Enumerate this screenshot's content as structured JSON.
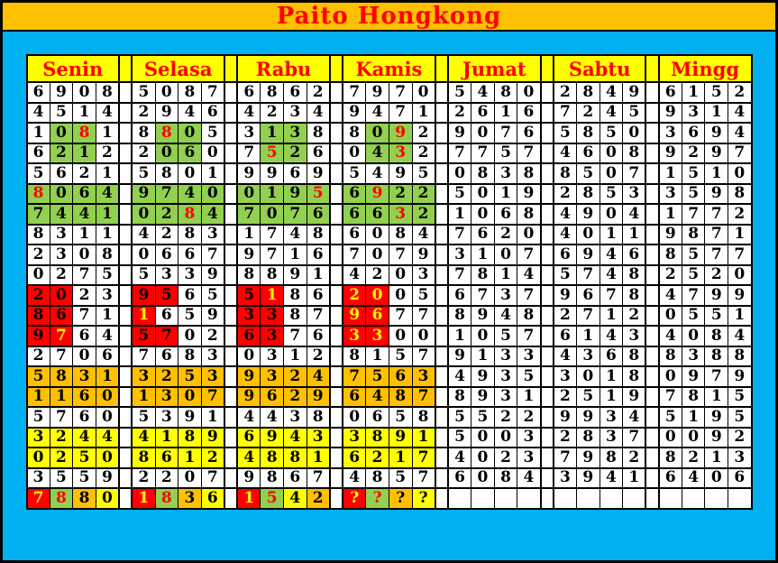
{
  "title": "Paito Hongkong",
  "colors": {
    "page_background": "#00B0F0",
    "title_bar_background": "#FFC000",
    "title_text": "#FF0000",
    "header_background": "#FFFF00",
    "header_text": "#FF0000",
    "cell_background": "#FFFFFF",
    "cell_text": "#000000",
    "highlight_green": "#92D050",
    "highlight_red": "#FF0000",
    "highlight_orange": "#FFC000",
    "highlight_yellow": "#FFFF00",
    "digit_red": "#FF0000",
    "digit_yellow": "#FFFF00"
  },
  "cell_encoding": {
    "format": "each cell string = digit character + background code + text-color code",
    "empty_digit": "_",
    "background_codes": {
      "w": "white",
      "g": "green",
      "r": "red",
      "o": "orange",
      "y": "yellow"
    },
    "text_codes": {
      "k": "black",
      "r": "red",
      "y": "yellow"
    }
  },
  "table": {
    "days": [
      "Senin",
      "Selasa",
      "Rabu",
      "Kamis",
      "Jumat",
      "Sabtu",
      "Mingg"
    ],
    "rows": [
      [
        [
          "6wk",
          "9wk",
          "0wk",
          "8wk"
        ],
        [
          "5wk",
          "0wk",
          "8wk",
          "7wk"
        ],
        [
          "6wk",
          "8wk",
          "6wk",
          "2wk"
        ],
        [
          "7wk",
          "9wk",
          "7wk",
          "0wk"
        ],
        [
          "5wk",
          "4wk",
          "8wk",
          "0wk"
        ],
        [
          "2wk",
          "8wk",
          "4wk",
          "9wk"
        ],
        [
          "6wk",
          "1wk",
          "5wk",
          "2wk"
        ]
      ],
      [
        [
          "4wk",
          "5wk",
          "1wk",
          "4wk"
        ],
        [
          "2wk",
          "9wk",
          "4wk",
          "6wk"
        ],
        [
          "4wk",
          "2wk",
          "3wk",
          "4wk"
        ],
        [
          "9wk",
          "4wk",
          "7wk",
          "1wk"
        ],
        [
          "2wk",
          "6wk",
          "1wk",
          "6wk"
        ],
        [
          "7wk",
          "2wk",
          "4wk",
          "5wk"
        ],
        [
          "9wk",
          "3wk",
          "1wk",
          "4wk"
        ]
      ],
      [
        [
          "1wk",
          "0gk",
          "8gr",
          "1wk"
        ],
        [
          "8wk",
          "8gr",
          "0gk",
          "5wk"
        ],
        [
          "3wk",
          "1gk",
          "3gk",
          "8wk"
        ],
        [
          "8wk",
          "0gk",
          "9gr",
          "2wk"
        ],
        [
          "9wk",
          "0wk",
          "7wk",
          "6wk"
        ],
        [
          "5wk",
          "8wk",
          "5wk",
          "0wk"
        ],
        [
          "3wk",
          "6wk",
          "9wk",
          "4wk"
        ]
      ],
      [
        [
          "6wk",
          "2gk",
          "1gk",
          "2wk"
        ],
        [
          "2wk",
          "0gk",
          "6gk",
          "0wk"
        ],
        [
          "7wk",
          "5gr",
          "2gk",
          "6wk"
        ],
        [
          "0wk",
          "4gk",
          "3gr",
          "2wk"
        ],
        [
          "7wk",
          "7wk",
          "5wk",
          "7wk"
        ],
        [
          "4wk",
          "6wk",
          "0wk",
          "8wk"
        ],
        [
          "9wk",
          "2wk",
          "9wk",
          "7wk"
        ]
      ],
      [
        [
          "5wk",
          "6wk",
          "2wk",
          "1wk"
        ],
        [
          "5wk",
          "8wk",
          "0wk",
          "1wk"
        ],
        [
          "9wk",
          "9wk",
          "6wk",
          "9wk"
        ],
        [
          "5wk",
          "4wk",
          "9wk",
          "5wk"
        ],
        [
          "0wk",
          "8wk",
          "3wk",
          "8wk"
        ],
        [
          "8wk",
          "5wk",
          "0wk",
          "7wk"
        ],
        [
          "1wk",
          "5wk",
          "1wk",
          "0wk"
        ]
      ],
      [
        [
          "8gr",
          "0gk",
          "6gk",
          "4gk"
        ],
        [
          "9gk",
          "7gk",
          "4gk",
          "0gk"
        ],
        [
          "0gk",
          "1gk",
          "9gk",
          "5gr"
        ],
        [
          "6gk",
          "9gr",
          "2gk",
          "2gk"
        ],
        [
          "5wk",
          "0wk",
          "1wk",
          "9wk"
        ],
        [
          "2wk",
          "8wk",
          "5wk",
          "3wk"
        ],
        [
          "3wk",
          "5wk",
          "9wk",
          "8wk"
        ]
      ],
      [
        [
          "7gk",
          "4gk",
          "4gk",
          "1gk"
        ],
        [
          "0gk",
          "2gk",
          "8gr",
          "4gk"
        ],
        [
          "7gk",
          "0gk",
          "7gk",
          "6gk"
        ],
        [
          "6gk",
          "6gk",
          "3gr",
          "2gk"
        ],
        [
          "1wk",
          "0wk",
          "6wk",
          "8wk"
        ],
        [
          "4wk",
          "9wk",
          "0wk",
          "4wk"
        ],
        [
          "1wk",
          "7wk",
          "7wk",
          "2wk"
        ]
      ],
      [
        [
          "8wk",
          "3wk",
          "1wk",
          "1wk"
        ],
        [
          "4wk",
          "2wk",
          "8wk",
          "3wk"
        ],
        [
          "1wk",
          "7wk",
          "4wk",
          "8wk"
        ],
        [
          "6wk",
          "0wk",
          "8wk",
          "4wk"
        ],
        [
          "7wk",
          "6wk",
          "2wk",
          "0wk"
        ],
        [
          "4wk",
          "0wk",
          "1wk",
          "1wk"
        ],
        [
          "9wk",
          "8wk",
          "7wk",
          "1wk"
        ]
      ],
      [
        [
          "2wk",
          "3wk",
          "0wk",
          "8wk"
        ],
        [
          "0wk",
          "6wk",
          "6wk",
          "7wk"
        ],
        [
          "9wk",
          "7wk",
          "1wk",
          "6wk"
        ],
        [
          "7wk",
          "0wk",
          "7wk",
          "9wk"
        ],
        [
          "3wk",
          "1wk",
          "0wk",
          "7wk"
        ],
        [
          "6wk",
          "9wk",
          "4wk",
          "6wk"
        ],
        [
          "8wk",
          "5wk",
          "7wk",
          "7wk"
        ]
      ],
      [
        [
          "0wk",
          "2wk",
          "7wk",
          "5wk"
        ],
        [
          "5wk",
          "3wk",
          "3wk",
          "9wk"
        ],
        [
          "8wk",
          "8wk",
          "9wk",
          "1wk"
        ],
        [
          "4wk",
          "2wk",
          "0wk",
          "3wk"
        ],
        [
          "7wk",
          "8wk",
          "1wk",
          "4wk"
        ],
        [
          "5wk",
          "7wk",
          "4wk",
          "8wk"
        ],
        [
          "2wk",
          "5wk",
          "2wk",
          "0wk"
        ]
      ],
      [
        [
          "2rk",
          "0rk",
          "2wk",
          "3wk"
        ],
        [
          "9rk",
          "5rk",
          "6wk",
          "5wk"
        ],
        [
          "5rk",
          "1ry",
          "8wk",
          "6wk"
        ],
        [
          "2ry",
          "0ry",
          "0wk",
          "5wk"
        ],
        [
          "6wk",
          "7wk",
          "3wk",
          "7wk"
        ],
        [
          "9wk",
          "6wk",
          "7wk",
          "8wk"
        ],
        [
          "4wk",
          "7wk",
          "9wk",
          "9wk"
        ]
      ],
      [
        [
          "8rk",
          "6rk",
          "7wk",
          "1wk"
        ],
        [
          "1ry",
          "6wk",
          "5wk",
          "9wk"
        ],
        [
          "3rk",
          "3rk",
          "8wk",
          "7wk"
        ],
        [
          "9ry",
          "6ry",
          "7wk",
          "7wk"
        ],
        [
          "8wk",
          "9wk",
          "4wk",
          "8wk"
        ],
        [
          "2wk",
          "7wk",
          "1wk",
          "2wk"
        ],
        [
          "0wk",
          "5wk",
          "5wk",
          "1wk"
        ]
      ],
      [
        [
          "9rk",
          "7ry",
          "6wk",
          "4wk"
        ],
        [
          "5rk",
          "7rk",
          "0wk",
          "2wk"
        ],
        [
          "6rk",
          "3rk",
          "7wk",
          "6wk"
        ],
        [
          "3ry",
          "3ry",
          "0wk",
          "0wk"
        ],
        [
          "1wk",
          "0wk",
          "5wk",
          "7wk"
        ],
        [
          "6wk",
          "1wk",
          "4wk",
          "3wk"
        ],
        [
          "4wk",
          "0wk",
          "8wk",
          "4wk"
        ]
      ],
      [
        [
          "2wk",
          "7wk",
          "0wk",
          "6wk"
        ],
        [
          "7wk",
          "6wk",
          "8wk",
          "3wk"
        ],
        [
          "0wk",
          "3wk",
          "1wk",
          "2wk"
        ],
        [
          "8wk",
          "1wk",
          "5wk",
          "7wk"
        ],
        [
          "9wk",
          "1wk",
          "3wk",
          "3wk"
        ],
        [
          "4wk",
          "3wk",
          "6wk",
          "8wk"
        ],
        [
          "8wk",
          "3wk",
          "8wk",
          "8wk"
        ]
      ],
      [
        [
          "5ok",
          "8ok",
          "3ok",
          "1ok"
        ],
        [
          "3ok",
          "2ok",
          "5ok",
          "3ok"
        ],
        [
          "9ok",
          "3ok",
          "2ok",
          "4ok"
        ],
        [
          "7ok",
          "5ok",
          "6ok",
          "3ok"
        ],
        [
          "4wk",
          "9wk",
          "3wk",
          "5wk"
        ],
        [
          "3wk",
          "0wk",
          "1wk",
          "8wk"
        ],
        [
          "0wk",
          "9wk",
          "7wk",
          "9wk"
        ]
      ],
      [
        [
          "1ok",
          "1ok",
          "6ok",
          "0ok"
        ],
        [
          "1ok",
          "3ok",
          "0ok",
          "7ok"
        ],
        [
          "9ok",
          "6ok",
          "2ok",
          "9ok"
        ],
        [
          "6ok",
          "4ok",
          "8ok",
          "7ok"
        ],
        [
          "8wk",
          "9wk",
          "3wk",
          "1wk"
        ],
        [
          "2wk",
          "5wk",
          "1wk",
          "9wk"
        ],
        [
          "7wk",
          "8wk",
          "1wk",
          "5wk"
        ]
      ],
      [
        [
          "5wk",
          "7wk",
          "6wk",
          "0wk"
        ],
        [
          "5wk",
          "3wk",
          "9wk",
          "1wk"
        ],
        [
          "4wk",
          "4wk",
          "3wk",
          "8wk"
        ],
        [
          "0wk",
          "6wk",
          "5wk",
          "8wk"
        ],
        [
          "5wk",
          "5wk",
          "2wk",
          "2wk"
        ],
        [
          "9wk",
          "9wk",
          "3wk",
          "4wk"
        ],
        [
          "5wk",
          "1wk",
          "9wk",
          "5wk"
        ]
      ],
      [
        [
          "3yk",
          "2yk",
          "4yk",
          "4yk"
        ],
        [
          "4yk",
          "1yk",
          "8yk",
          "9yk"
        ],
        [
          "6yk",
          "9yk",
          "4yk",
          "3yk"
        ],
        [
          "3yk",
          "8yk",
          "9yk",
          "1yk"
        ],
        [
          "5wk",
          "0wk",
          "0wk",
          "3wk"
        ],
        [
          "2wk",
          "8wk",
          "3wk",
          "7wk"
        ],
        [
          "0wk",
          "0wk",
          "9wk",
          "2wk"
        ]
      ],
      [
        [
          "0yk",
          "2yk",
          "5yk",
          "0yk"
        ],
        [
          "8yk",
          "6yk",
          "1yk",
          "2yk"
        ],
        [
          "4yk",
          "8yk",
          "8yk",
          "1yk"
        ],
        [
          "6yk",
          "2yk",
          "1yk",
          "7yk"
        ],
        [
          "4wk",
          "0wk",
          "2wk",
          "3wk"
        ],
        [
          "7wk",
          "9wk",
          "8wk",
          "2wk"
        ],
        [
          "8wk",
          "2wk",
          "1wk",
          "3wk"
        ]
      ],
      [
        [
          "3wk",
          "5wk",
          "5wk",
          "9wk"
        ],
        [
          "2wk",
          "2wk",
          "0wk",
          "7wk"
        ],
        [
          "9wk",
          "8wk",
          "6wk",
          "7wk"
        ],
        [
          "4wk",
          "8wk",
          "5wk",
          "7wk"
        ],
        [
          "6wk",
          "0wk",
          "8wk",
          "4wk"
        ],
        [
          "3wk",
          "9wk",
          "4wk",
          "1wk"
        ],
        [
          "6wk",
          "4wk",
          "0wk",
          "6wk"
        ]
      ],
      [
        [
          "7ry",
          "8gr",
          "8ok",
          "0yk"
        ],
        [
          "1ry",
          "8gr",
          "3ok",
          "6yk"
        ],
        [
          "1ry",
          "5gr",
          "4yk",
          "2ok"
        ],
        [
          "?ry",
          "?gr",
          "?ok",
          "?yk"
        ],
        [
          "_wk",
          "_wk",
          "_wk",
          "_wk"
        ],
        [
          "_wk",
          "_wk",
          "_wk",
          "_wk"
        ],
        [
          "_wk",
          "_wk",
          "_wk",
          "_wk"
        ]
      ]
    ]
  }
}
